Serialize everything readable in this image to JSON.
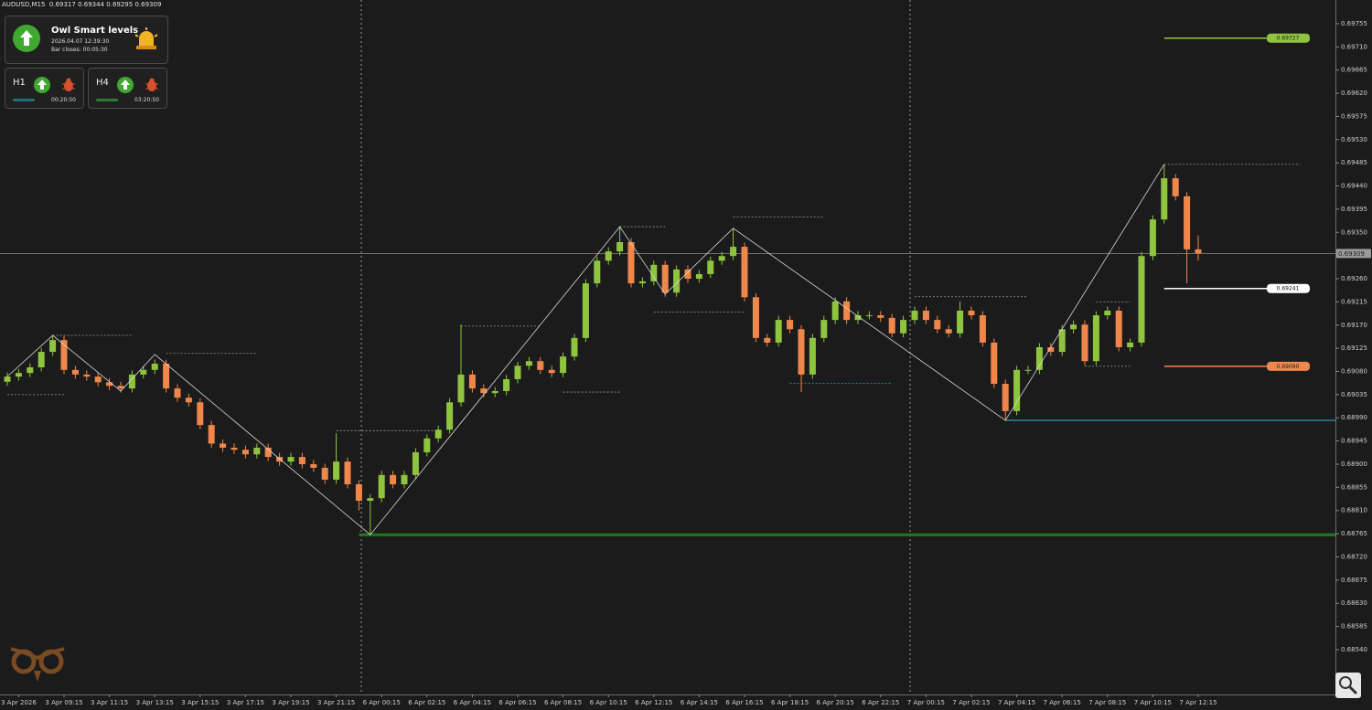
{
  "chart_data": {
    "type": "candlestick",
    "title": "AUDUSD,M15",
    "categories": [
      null,
      "3 Apr 2026",
      null,
      null,
      null,
      "3 Apr 09:15",
      null,
      null,
      null,
      "3 Apr 11:15",
      null,
      null,
      null,
      "3 Apr 13:15",
      null,
      null,
      null,
      "3 Apr 15:15",
      null,
      null,
      null,
      "3 Apr 17:15",
      null,
      null,
      null,
      "3 Apr 19:15",
      null,
      null,
      null,
      "3 Apr 21:15",
      null,
      null,
      null,
      "6 Apr 00:15",
      null,
      null,
      null,
      "6 Apr 02:15",
      null,
      null,
      null,
      "6 Apr 04:15",
      null,
      null,
      null,
      "6 Apr 06:15",
      null,
      null,
      null,
      "6 Apr 08:15",
      null,
      null,
      null,
      "6 Apr 10:15",
      null,
      null,
      null,
      "6 Apr 12:15",
      null,
      null,
      null,
      "6 Apr 14:15",
      null,
      null,
      null,
      "6 Apr 16:15",
      null,
      null,
      null,
      "6 Apr 18:15",
      null,
      null,
      null,
      "6 Apr 20:15",
      null,
      null,
      null,
      "6 Apr 22:15",
      null,
      null,
      null,
      "7 Apr 00:15",
      null,
      null,
      null,
      "7 Apr 02:15",
      null,
      null,
      null,
      "7 Apr 04:15",
      null,
      null,
      null,
      "7 Apr 06:15",
      null,
      null,
      null,
      "7 Apr 08:15",
      null,
      null,
      null,
      "7 Apr 10:15",
      null,
      null,
      null,
      "7 Apr 12:15"
    ],
    "open": [
      0.6906,
      0.6907,
      0.69077,
      0.69088,
      0.69118,
      0.69141,
      0.69083,
      0.69074,
      0.6907,
      0.69059,
      0.69052,
      0.69047,
      0.69074,
      0.69083,
      0.69095,
      0.69047,
      0.69029,
      0.6902,
      0.68976,
      0.6894,
      0.68932,
      0.68928,
      0.68919,
      0.68932,
      0.68914,
      0.68905,
      0.68914,
      0.689,
      0.68893,
      0.6887,
      0.68905,
      0.68861,
      0.68829,
      0.68834,
      0.68879,
      0.68861,
      0.68879,
      0.68923,
      0.6895,
      0.68967,
      0.6902,
      0.69074,
      0.69047,
      0.69038,
      0.69042,
      0.69065,
      0.69091,
      0.691,
      0.69083,
      0.69077,
      0.69109,
      0.69145,
      0.69251,
      0.69295,
      0.69313,
      0.69331,
      0.69251,
      0.69255,
      0.69287,
      0.69233,
      0.69278,
      0.6926,
      0.69269,
      0.69295,
      0.69304,
      0.69322,
      0.69224,
      0.69145,
      0.69136,
      0.6918,
      0.69162,
      0.69074,
      0.69145,
      0.6918,
      0.69216,
      0.6918,
      0.69189,
      0.69189,
      0.69184,
      0.69154,
      0.6918,
      0.69198,
      0.6918,
      0.69162,
      0.69154,
      0.69198,
      0.69189,
      0.69136,
      0.69056,
      0.69003,
      0.69083,
      0.69083,
      0.69127,
      0.69118,
      0.69162,
      0.69171,
      0.691,
      0.69189,
      0.69198,
      0.69127,
      0.69136,
      0.69304,
      0.69375,
      0.69455,
      0.6942,
      0.69317
    ],
    "high": [
      0.69078,
      0.69085,
      0.69096,
      0.69126,
      0.6915,
      0.69149,
      0.69091,
      0.69082,
      0.69078,
      0.69067,
      0.6906,
      0.69082,
      0.69091,
      0.69103,
      0.69103,
      0.69055,
      0.69037,
      0.69028,
      0.68984,
      0.68948,
      0.6894,
      0.68936,
      0.6894,
      0.6894,
      0.68922,
      0.68922,
      0.68922,
      0.68908,
      0.68901,
      0.6896,
      0.68913,
      0.68869,
      0.68842,
      0.68887,
      0.68887,
      0.68887,
      0.68931,
      0.68958,
      0.68975,
      0.69028,
      0.69171,
      0.69082,
      0.69055,
      0.6905,
      0.69073,
      0.69099,
      0.69108,
      0.69108,
      0.69091,
      0.69117,
      0.69153,
      0.69259,
      0.69303,
      0.69321,
      0.69361,
      0.69339,
      0.69263,
      0.69295,
      0.69295,
      0.69286,
      0.69286,
      0.69277,
      0.69303,
      0.69312,
      0.69358,
      0.6933,
      0.69232,
      0.69153,
      0.69188,
      0.69188,
      0.6917,
      0.69153,
      0.69188,
      0.69224,
      0.69224,
      0.69197,
      0.69197,
      0.69197,
      0.69192,
      0.69188,
      0.69206,
      0.69206,
      0.69188,
      0.6917,
      0.69216,
      0.69206,
      0.69197,
      0.69144,
      0.69064,
      0.69091,
      0.69091,
      0.69135,
      0.69135,
      0.6917,
      0.69179,
      0.69179,
      0.69197,
      0.69206,
      0.69206,
      0.69144,
      0.69312,
      0.69383,
      0.69482,
      0.69463,
      0.69428,
      0.69344
    ],
    "low": [
      0.69052,
      0.69062,
      0.69069,
      0.6908,
      0.6911,
      0.69075,
      0.69066,
      0.69062,
      0.69051,
      0.69044,
      0.69039,
      0.69039,
      0.69066,
      0.69075,
      0.69039,
      0.69021,
      0.69012,
      0.68968,
      0.68932,
      0.68924,
      0.6892,
      0.68911,
      0.68911,
      0.68906,
      0.68897,
      0.68897,
      0.68892,
      0.68885,
      0.68862,
      0.68862,
      0.68853,
      0.6881,
      0.68763,
      0.68826,
      0.68853,
      0.68853,
      0.68871,
      0.68915,
      0.68942,
      0.68959,
      0.69012,
      0.69039,
      0.6903,
      0.6903,
      0.69034,
      0.69057,
      0.69083,
      0.69075,
      0.69069,
      0.69069,
      0.69101,
      0.69137,
      0.69243,
      0.69287,
      0.69305,
      0.69243,
      0.69243,
      0.69247,
      0.69225,
      0.69225,
      0.69252,
      0.69252,
      0.69261,
      0.69287,
      0.69296,
      0.69216,
      0.69137,
      0.69128,
      0.69128,
      0.69154,
      0.6904,
      0.69066,
      0.69137,
      0.69172,
      0.69172,
      0.69172,
      0.69181,
      0.69176,
      0.69146,
      0.69146,
      0.69172,
      0.69172,
      0.69154,
      0.69146,
      0.69146,
      0.69181,
      0.69128,
      0.69048,
      0.68985,
      0.68995,
      0.69075,
      0.69075,
      0.6911,
      0.6911,
      0.69154,
      0.69092,
      0.69092,
      0.69181,
      0.69119,
      0.69119,
      0.69128,
      0.69296,
      0.69367,
      0.69412,
      0.69251,
      0.69295
    ],
    "close": [
      0.6907,
      0.69077,
      0.69088,
      0.69118,
      0.69141,
      0.69083,
      0.69074,
      0.6907,
      0.69059,
      0.69052,
      0.69047,
      0.69074,
      0.69083,
      0.69095,
      0.69047,
      0.69029,
      0.6902,
      0.68976,
      0.6894,
      0.68932,
      0.68928,
      0.68919,
      0.68932,
      0.68914,
      0.68905,
      0.68914,
      0.689,
      0.68893,
      0.6887,
      0.68905,
      0.68861,
      0.68829,
      0.68834,
      0.68879,
      0.68861,
      0.68879,
      0.68923,
      0.6895,
      0.68967,
      0.6902,
      0.69074,
      0.69047,
      0.69038,
      0.69042,
      0.69065,
      0.69091,
      0.691,
      0.69083,
      0.69077,
      0.69109,
      0.69145,
      0.69251,
      0.69295,
      0.69313,
      0.69331,
      0.69251,
      0.69255,
      0.69287,
      0.69233,
      0.69278,
      0.6926,
      0.69269,
      0.69295,
      0.69304,
      0.69322,
      0.69224,
      0.69145,
      0.69136,
      0.6918,
      0.69162,
      0.69074,
      0.69145,
      0.6918,
      0.69216,
      0.6918,
      0.69189,
      0.69189,
      0.69184,
      0.69154,
      0.6918,
      0.69198,
      0.6918,
      0.69162,
      0.69154,
      0.69198,
      0.69189,
      0.69136,
      0.69056,
      0.69003,
      0.69083,
      0.69083,
      0.69127,
      0.69118,
      0.69162,
      0.69171,
      0.691,
      0.69189,
      0.69198,
      0.69127,
      0.69136,
      0.69304,
      0.69375,
      0.69455,
      0.6942,
      0.69317,
      0.69309
    ],
    "up_color": "#8fc53e",
    "down_color": "#f0874a",
    "ylim": [
      0.68453,
      0.69801
    ],
    "yticks": [
      0.69755,
      {
        "value": 0.6971,
        "label": "0.69710"
      },
      0.69665,
      {
        "value": 0.6962,
        "label": "0.69620"
      },
      0.69575,
      {
        "value": 0.6953,
        "label": "0.69530"
      },
      0.69485,
      {
        "value": 0.6944,
        "label": "0.69440"
      },
      0.69395,
      {
        "value": 0.6935,
        "label": "0.69350"
      },
      {
        "value": 0.6926,
        "label": "0.69260"
      },
      0.69215,
      {
        "value": 0.6917,
        "label": "0.69170"
      },
      0.69125,
      {
        "value": 0.6908,
        "label": "0.69080"
      },
      0.69035,
      {
        "value": 0.6899,
        "label": "0.68990"
      },
      0.68945,
      {
        "value": 0.689,
        "label": "0.68900"
      },
      0.68855,
      {
        "value": 0.6881,
        "label": "0.68810"
      },
      0.68765,
      {
        "value": 0.6872,
        "label": "0.68720"
      },
      0.68675,
      {
        "value": 0.6863,
        "label": "0.68630"
      },
      0.68585,
      {
        "value": 0.6854,
        "label": "0.68540"
      }
    ],
    "current_price": 0.69309,
    "zigzag": {
      "color": "#d9d9d9",
      "x": [
        0,
        4,
        10,
        13,
        32,
        54,
        58,
        64,
        88,
        102
      ],
      "values": [
        0.6907,
        0.6915,
        0.69042,
        0.69113,
        0.68763,
        0.69361,
        0.6923,
        0.69358,
        0.68985,
        0.69482
      ]
    },
    "levels": [
      {
        "from": 4,
        "to": 11,
        "value": 0.6915,
        "color": "#9a9a9a"
      },
      {
        "from": 0,
        "to": 5,
        "value": 0.69035,
        "color": "#9a9a9a"
      },
      {
        "from": 14,
        "to": 22,
        "value": 0.69115,
        "color": "#9a9a9a"
      },
      {
        "from": 29,
        "to": 38,
        "value": 0.68965,
        "color": "#9a9a9a"
      },
      {
        "from": 40,
        "to": 47,
        "value": 0.69168,
        "color": "#9a9a9a"
      },
      {
        "from": 49,
        "to": 54,
        "value": 0.6904,
        "color": "#9a9a9a"
      },
      {
        "from": 54,
        "to": 58,
        "value": 0.69361,
        "color": "#9a9a9a"
      },
      {
        "from": 57,
        "to": 65,
        "value": 0.69195,
        "color": "#9a9a9a"
      },
      {
        "from": 64,
        "to": 72,
        "value": 0.6938,
        "color": "#9a9a9a"
      },
      {
        "from": 69,
        "to": 78,
        "value": 0.69057,
        "color": "#3a9dc4"
      },
      {
        "from": 80,
        "to": 90,
        "value": 0.69225,
        "color": "#9a9a9a"
      },
      {
        "from": 95,
        "to": 99,
        "value": 0.6909,
        "color": "#9a9a9a"
      },
      {
        "from": 96,
        "to": 99,
        "value": 0.69215,
        "color": "#9a9a9a"
      },
      {
        "from": 102,
        "to": 114,
        "value": 0.69482,
        "color": "#9a9a9a"
      }
    ],
    "support_lines": [
      {
        "from": 88,
        "value": 0.68985,
        "color": "#2a86a6"
      },
      {
        "from": 31,
        "value": 0.68763,
        "color": "#1f7a1f"
      }
    ],
    "target_levels": {
      "values": [
        0.69727,
        0.69241,
        0.6909
      ],
      "value_labels": [
        "0.69727",
        "0.69241",
        "0.69090"
      ],
      "colors": [
        "#8fc53e",
        "#ffffff",
        "#f0874a"
      ]
    }
  },
  "panel": {
    "title": "Owl Smart levels",
    "datetime": "2026.04.07 12:39:30",
    "bar_closes": "Bar closes: 00:05:30",
    "timeframes": [
      {
        "label": "H1",
        "timer": "00:20:50",
        "bar_color": "#1f6f7a"
      },
      {
        "label": "H4",
        "timer": "03:20:50",
        "bar_color": "#2f7a2f"
      }
    ]
  }
}
